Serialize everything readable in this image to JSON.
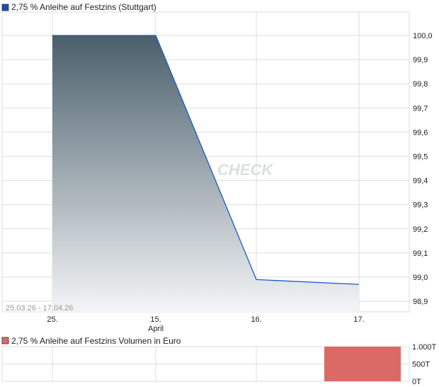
{
  "chart_data": [
    {
      "type": "area",
      "title": "2,75 % Anleihe auf Festzins (Stuttgart)",
      "date_range_label": "25.03.26 - 17.04.26",
      "x_ticks": [
        "25.",
        "15.",
        "16.",
        "17."
      ],
      "x_sublabel": "April",
      "y_ticks": [
        "100,0",
        "99,9",
        "99,8",
        "99,7",
        "99,6",
        "99,5",
        "99,4",
        "99,3",
        "99,2",
        "99,1",
        "99,0",
        "98,9"
      ],
      "ylim": [
        98.87,
        100.1
      ],
      "grid": true,
      "series": [
        {
          "name": "2,75 % Anleihe auf Festzins (Stuttgart)",
          "x": [
            "25.",
            "15.",
            "16.",
            "17."
          ],
          "values": [
            100.0,
            100.0,
            98.99,
            98.97
          ]
        }
      ],
      "colors": {
        "line": "#1a5cc8",
        "fill_top": "#4a5f6c",
        "fill_bottom": "#f4f5f7",
        "legend": "#1a4fa8"
      }
    },
    {
      "type": "bar",
      "title": "2,75 % Anleihe auf Festzins Volumen in Euro",
      "y_ticks": [
        "1.000T",
        "500T",
        "0T"
      ],
      "ylim": [
        0,
        1000
      ],
      "categories": [
        "17."
      ],
      "values": [
        1000
      ],
      "grid": true,
      "colors": {
        "bar": "#db6a67"
      }
    }
  ],
  "watermark": "CHECK"
}
